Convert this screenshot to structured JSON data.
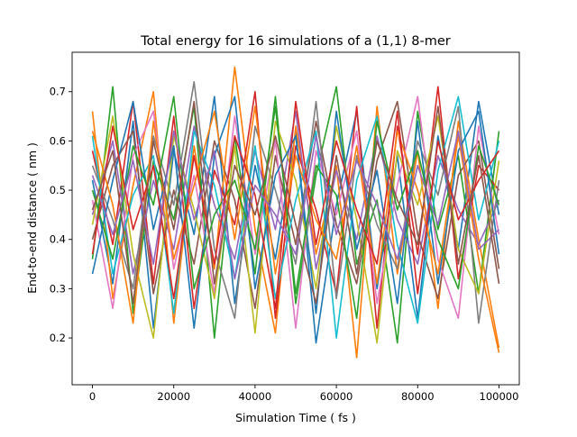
{
  "chart_data": {
    "type": "line",
    "title": "Total energy for 16 simulations of a (1,1) 8-mer",
    "xlabel": "Simulation Time ( fs )",
    "ylabel": "End-to-end distance ( nm )",
    "xlim": [
      -5000,
      105000
    ],
    "ylim": [
      0.105,
      0.78
    ],
    "xticks": [
      0,
      20000,
      40000,
      60000,
      80000,
      100000
    ],
    "xtick_labels": [
      "0",
      "20000",
      "40000",
      "60000",
      "80000",
      "100000"
    ],
    "yticks": [
      0.2,
      0.3,
      0.4,
      0.5,
      0.6,
      0.7
    ],
    "ytick_labels": [
      "0.2",
      "0.3",
      "0.4",
      "0.5",
      "0.6",
      "0.7"
    ],
    "grid": false,
    "legend": "none",
    "series_colors": [
      "#1f77b4",
      "#ff7f0e",
      "#2ca02c",
      "#d62728",
      "#9467bd",
      "#8c564b",
      "#e377c2",
      "#7f7f7f",
      "#bcbd22",
      "#17becf",
      "#1f77b4",
      "#ff7f0e",
      "#2ca02c",
      "#d62728",
      "#9467bd",
      "#8c564b"
    ],
    "x": [
      0,
      5000,
      10000,
      15000,
      20000,
      25000,
      30000,
      35000,
      40000,
      45000,
      50000,
      55000,
      60000,
      65000,
      70000,
      75000,
      80000,
      85000,
      90000,
      95000,
      100000
    ],
    "series": [
      {
        "values": [
          0.52,
          0.31,
          0.64,
          0.22,
          0.58,
          0.41,
          0.69,
          0.27,
          0.55,
          0.36,
          0.62,
          0.19,
          0.47,
          0.66,
          0.3,
          0.57,
          0.24,
          0.61,
          0.38,
          0.68,
          0.45
        ]
      },
      {
        "values": [
          0.66,
          0.28,
          0.51,
          0.7,
          0.23,
          0.59,
          0.34,
          0.75,
          0.42,
          0.21,
          0.63,
          0.37,
          0.55,
          0.16,
          0.67,
          0.33,
          0.58,
          0.26,
          0.64,
          0.4,
          0.18
        ]
      },
      {
        "values": [
          0.36,
          0.71,
          0.25,
          0.56,
          0.44,
          0.67,
          0.2,
          0.61,
          0.33,
          0.69,
          0.27,
          0.53,
          0.71,
          0.35,
          0.48,
          0.19,
          0.66,
          0.42,
          0.57,
          0.29,
          0.62
        ]
      },
      {
        "values": [
          0.58,
          0.39,
          0.68,
          0.31,
          0.65,
          0.26,
          0.54,
          0.43,
          0.7,
          0.24,
          0.59,
          0.46,
          0.29,
          0.67,
          0.22,
          0.63,
          0.37,
          0.71,
          0.32,
          0.55,
          0.5
        ]
      },
      {
        "values": [
          0.45,
          0.6,
          0.33,
          0.52,
          0.38,
          0.63,
          0.47,
          0.36,
          0.58,
          0.42,
          0.66,
          0.34,
          0.54,
          0.4,
          0.61,
          0.44,
          0.35,
          0.57,
          0.46,
          0.39,
          0.48
        ]
      },
      {
        "values": [
          0.4,
          0.55,
          0.62,
          0.29,
          0.5,
          0.35,
          0.6,
          0.48,
          0.26,
          0.57,
          0.39,
          0.64,
          0.43,
          0.31,
          0.56,
          0.68,
          0.41,
          0.28,
          0.53,
          0.6,
          0.34
        ]
      },
      {
        "values": [
          0.48,
          0.26,
          0.57,
          0.66,
          0.34,
          0.53,
          0.29,
          0.65,
          0.37,
          0.6,
          0.22,
          0.58,
          0.45,
          0.62,
          0.27,
          0.51,
          0.69,
          0.36,
          0.24,
          0.63,
          0.41
        ]
      },
      {
        "values": [
          0.55,
          0.44,
          0.3,
          0.61,
          0.47,
          0.72,
          0.38,
          0.24,
          0.63,
          0.5,
          0.35,
          0.68,
          0.28,
          0.57,
          0.43,
          0.34,
          0.6,
          0.49,
          0.67,
          0.23,
          0.52
        ]
      },
      {
        "values": [
          0.43,
          0.65,
          0.37,
          0.2,
          0.61,
          0.46,
          0.28,
          0.59,
          0.21,
          0.64,
          0.52,
          0.3,
          0.63,
          0.44,
          0.19,
          0.58,
          0.47,
          0.65,
          0.38,
          0.29,
          0.56
        ]
      },
      {
        "values": [
          0.61,
          0.33,
          0.49,
          0.57,
          0.25,
          0.62,
          0.51,
          0.32,
          0.59,
          0.28,
          0.48,
          0.62,
          0.2,
          0.52,
          0.65,
          0.39,
          0.23,
          0.54,
          0.69,
          0.44,
          0.6
        ]
      },
      {
        "values": [
          0.33,
          0.52,
          0.68,
          0.42,
          0.59,
          0.22,
          0.57,
          0.69,
          0.3,
          0.53,
          0.61,
          0.25,
          0.66,
          0.38,
          0.54,
          0.27,
          0.64,
          0.31,
          0.58,
          0.66,
          0.37
        ]
      },
      {
        "values": [
          0.62,
          0.47,
          0.23,
          0.64,
          0.36,
          0.51,
          0.66,
          0.4,
          0.67,
          0.33,
          0.57,
          0.44,
          0.36,
          0.59,
          0.31,
          0.62,
          0.5,
          0.33,
          0.61,
          0.36,
          0.17
        ]
      },
      {
        "values": [
          0.5,
          0.36,
          0.59,
          0.47,
          0.69,
          0.3,
          0.45,
          0.52,
          0.38,
          0.67,
          0.29,
          0.55,
          0.49,
          0.24,
          0.64,
          0.46,
          0.58,
          0.4,
          0.3,
          0.59,
          0.47
        ]
      },
      {
        "values": [
          0.37,
          0.63,
          0.42,
          0.55,
          0.28,
          0.57,
          0.35,
          0.61,
          0.49,
          0.26,
          0.68,
          0.39,
          0.6,
          0.46,
          0.35,
          0.66,
          0.29,
          0.6,
          0.44,
          0.52,
          0.58
        ]
      },
      {
        "values": [
          0.53,
          0.41,
          0.56,
          0.35,
          0.62,
          0.44,
          0.58,
          0.32,
          0.51,
          0.45,
          0.37,
          0.61,
          0.41,
          0.56,
          0.47,
          0.36,
          0.55,
          0.43,
          0.62,
          0.38,
          0.42
        ]
      },
      {
        "values": [
          0.46,
          0.58,
          0.27,
          0.6,
          0.42,
          0.68,
          0.31,
          0.55,
          0.45,
          0.61,
          0.43,
          0.27,
          0.57,
          0.33,
          0.6,
          0.48,
          0.39,
          0.67,
          0.35,
          0.57,
          0.31
        ]
      }
    ]
  }
}
